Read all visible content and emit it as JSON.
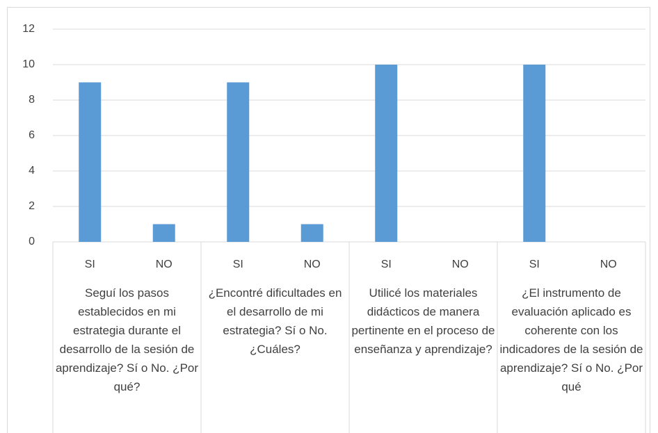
{
  "chart_data": {
    "type": "bar",
    "categories": [
      "SI",
      "NO",
      "SI",
      "NO",
      "SI",
      "NO",
      "SI",
      "NO"
    ],
    "groups": [
      "Seguí los pasos establecidos en mi estrategia durante el desarrollo de la sesión de aprendizaje? Sí o No. ¿Por qué?",
      "¿Encontré dificultades en el desarrollo de mi estrategia? Sí o No. ¿Cuáles?",
      "Utilicé los materiales didácticos de manera pertinente en el proceso de enseñanza y aprendizaje?",
      "¿El instrumento de evaluación aplicado es coherente con los indicadores de la sesión de aprendizaje? Sí o No. ¿Por qué"
    ],
    "values": [
      9,
      1,
      9,
      1,
      10,
      0,
      10,
      0
    ],
    "color": "#5b9bd5",
    "ylim": [
      0,
      12
    ],
    "yticks": [
      0,
      2,
      4,
      6,
      8,
      10,
      12
    ],
    "grid": true
  }
}
